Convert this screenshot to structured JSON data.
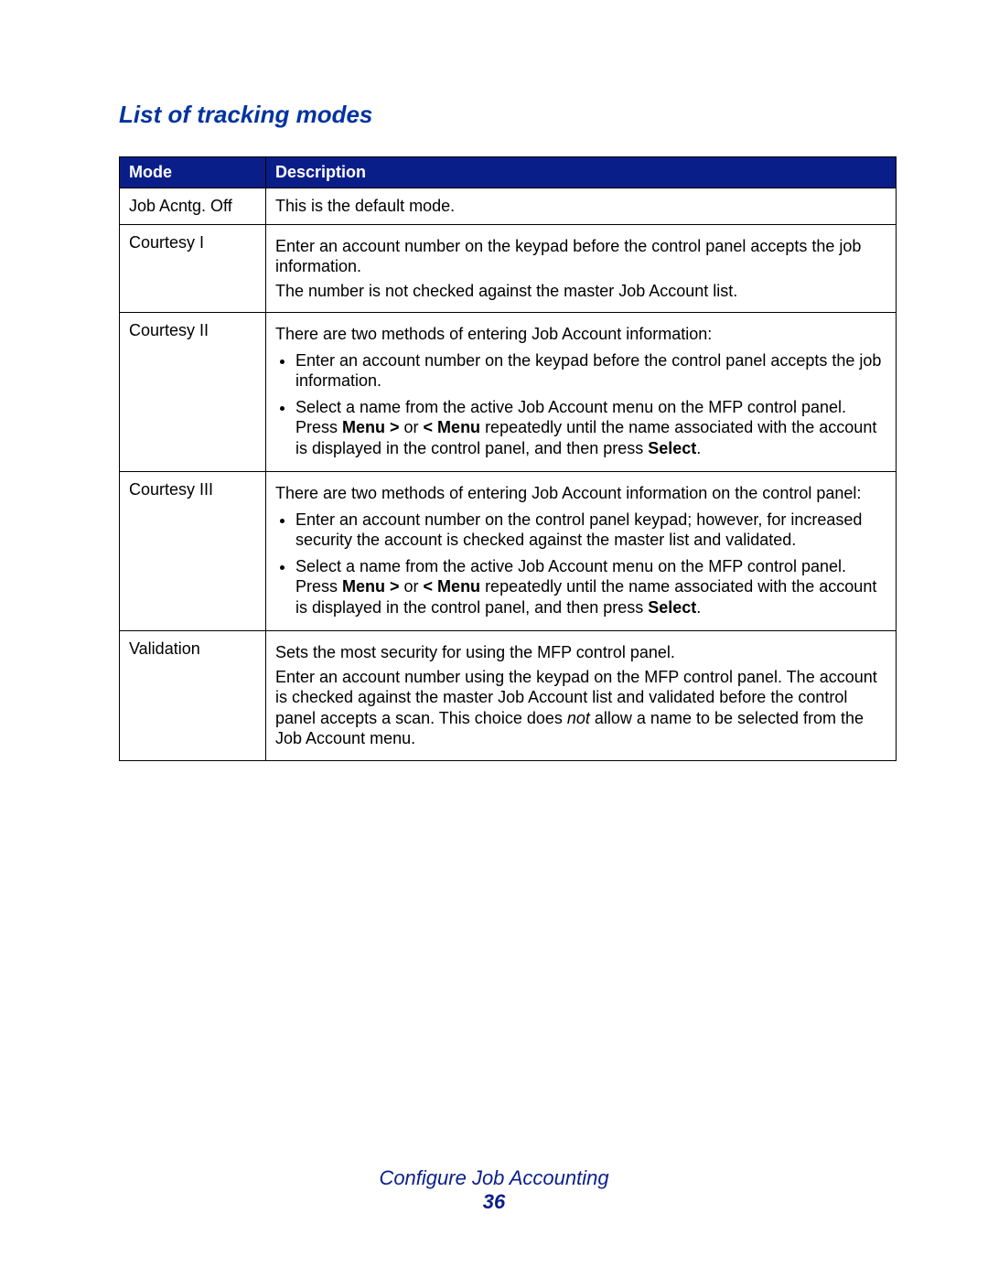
{
  "title_color": "#0033a0",
  "header_bg": "#0a1e8a",
  "header_fg": "#ffffff",
  "footer_color": "#0a1e8a",
  "page_title": "List of tracking modes",
  "columns": {
    "mode": "Mode",
    "description": "Description"
  },
  "rows": {
    "r1": {
      "mode": "Job Acntg. Off",
      "desc": "This is the default mode."
    },
    "r2": {
      "mode": "Courtesy I",
      "p1": "Enter an account number on the keypad before the control panel accepts the job information.",
      "p2": "The number is not checked against the master Job Account list."
    },
    "r3": {
      "mode": "Courtesy II",
      "intro": "There are two methods of entering Job Account information:",
      "b1": "Enter an account number on the keypad before the control panel accepts the job information.",
      "b2_pre": "Select a name from the active Job Account menu on the MFP control panel. Press ",
      "b2_bold1": "Menu >",
      "b2_mid": " or ",
      "b2_bold2": "< Menu",
      "b2_after": " repeatedly until the name associated with the account is displayed in the control panel, and then press ",
      "b2_bold3": "Select",
      "b2_end": "."
    },
    "r4": {
      "mode": "Courtesy III",
      "intro": "There are two methods of entering Job Account information on the control panel:",
      "b1": "Enter an account number on the control panel keypad; however, for increased security the account is checked against the master list and validated.",
      "b2_pre": "Select a name from the active Job Account menu on the MFP control panel. Press ",
      "b2_bold1": "Menu >",
      "b2_mid": " or ",
      "b2_bold2": "< Menu",
      "b2_after": " repeatedly until the name associated with the account is displayed in the control panel, and then press ",
      "b2_bold3": "Select",
      "b2_end": "."
    },
    "r5": {
      "mode": "Validation",
      "p1": "Sets the most security for using the MFP control panel.",
      "p2_pre": "Enter an account number using the keypad on the MFP control panel. The account is checked against the master Job Account list and validated before the control panel accepts a scan. This choice does ",
      "p2_italic": "not",
      "p2_post": " allow a name to be selected from the Job Account menu."
    }
  },
  "footer": {
    "section": "Configure Job Accounting",
    "page": "36"
  }
}
